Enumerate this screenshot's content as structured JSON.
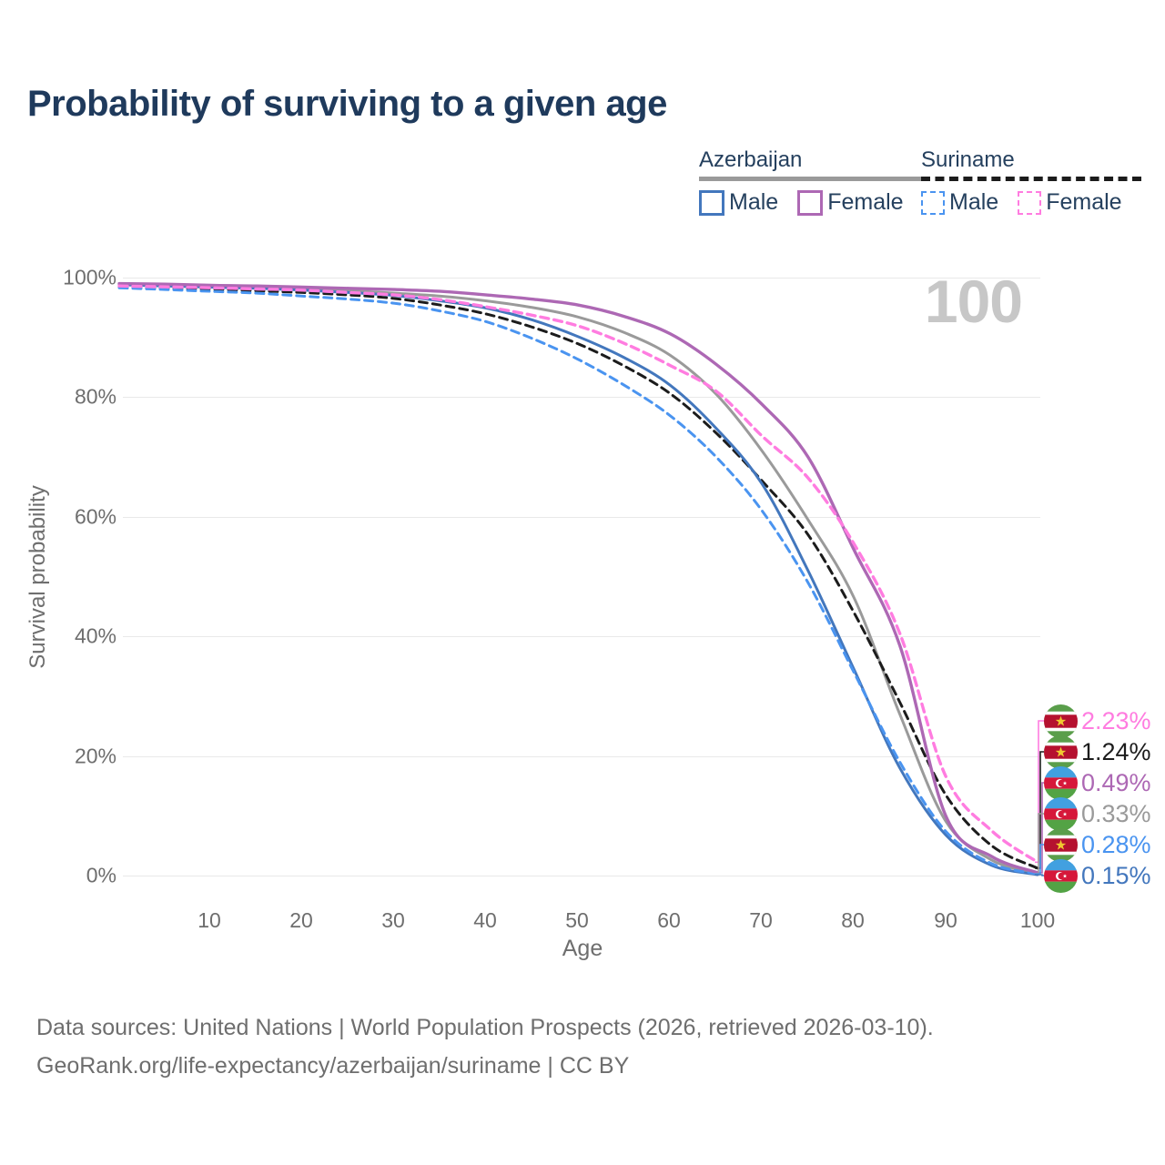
{
  "title": "Probability of surviving to a given age",
  "hover_age": "100",
  "legend": {
    "groups": [
      {
        "country": "Azerbaijan",
        "line_style": "solid",
        "underline_color": "#9a9a9a",
        "items": [
          {
            "label": "Male",
            "color": "#4377bd"
          },
          {
            "label": "Female",
            "color": "#ad68b4"
          }
        ]
      },
      {
        "country": "Suriname",
        "line_style": "dashed",
        "underline_color": "#1c1c1c",
        "items": [
          {
            "label": "Male",
            "color": "#4a94f0"
          },
          {
            "label": "Female",
            "color": "#ff7ce0"
          }
        ]
      }
    ]
  },
  "axes": {
    "y_title": "Survival probability",
    "x_title": "Age",
    "y_ticks": [
      "100%",
      "80%",
      "60%",
      "40%",
      "20%",
      "0%"
    ],
    "x_ticks": [
      "10",
      "20",
      "30",
      "40",
      "50",
      "60",
      "70",
      "80",
      "90",
      "100"
    ]
  },
  "annotations": [
    {
      "flag": "suriname",
      "series": "suriname_female",
      "value": "2.23%",
      "color": "#ff7ce0"
    },
    {
      "flag": "suriname",
      "series": "suriname_total",
      "value": "1.24%",
      "color": "#1c1c1c"
    },
    {
      "flag": "azerbaijan",
      "series": "azerbaijan_female",
      "value": "0.49%",
      "color": "#ad68b4"
    },
    {
      "flag": "azerbaijan",
      "series": "azerbaijan_total",
      "value": "0.33%",
      "color": "#9a9a9a"
    },
    {
      "flag": "suriname",
      "series": "suriname_male",
      "value": "0.28%",
      "color": "#4a94f0"
    },
    {
      "flag": "azerbaijan",
      "series": "azerbaijan_male",
      "value": "0.15%",
      "color": "#4377bd"
    }
  ],
  "footer": {
    "line1": "Data sources: United Nations | World Population Prospects (2026, retrieved 2026-03-10).",
    "line2": "GeoRank.org/life-expectancy/azerbaijan/suriname | CC BY"
  },
  "chart_data": {
    "type": "line",
    "title": "Probability of surviving to a given age",
    "xlabel": "Age",
    "ylabel": "Survival probability",
    "x_range": [
      0,
      100
    ],
    "y_range_percent": [
      0,
      100
    ],
    "grid": "horizontal",
    "legend_position": "top-right",
    "highlighted_age": 100,
    "x": [
      0,
      5,
      10,
      15,
      20,
      25,
      30,
      35,
      40,
      45,
      50,
      55,
      60,
      65,
      70,
      75,
      80,
      85,
      90,
      95,
      100
    ],
    "series": [
      {
        "id": "azerbaijan_total",
        "country": "Azerbaijan",
        "sex": "Total",
        "style": "solid",
        "color": "#9a9a9a",
        "values": [
          98.9,
          98.75,
          98.6,
          98.4,
          98.1,
          97.8,
          97.4,
          96.9,
          96.1,
          95.0,
          93.4,
          90.8,
          87.0,
          80.5,
          71.0,
          59.5,
          46.5,
          27.0,
          9.1,
          2.6,
          0.33
        ]
      },
      {
        "id": "suriname_total",
        "country": "Suriname",
        "sex": "Total",
        "style": "dashed",
        "color": "#1c1c1c",
        "values": [
          98.5,
          98.3,
          98.1,
          97.8,
          97.5,
          97.1,
          96.5,
          95.4,
          93.9,
          91.7,
          88.9,
          85.2,
          80.6,
          74.0,
          66.0,
          57.0,
          44.0,
          29.0,
          13.5,
          5.0,
          1.24
        ]
      },
      {
        "id": "azerbaijan_male",
        "country": "Azerbaijan",
        "sex": "Male",
        "style": "solid",
        "color": "#4377bd",
        "values": [
          98.8,
          98.6,
          98.4,
          98.2,
          97.9,
          97.5,
          97.0,
          96.1,
          94.9,
          92.9,
          90.1,
          86.6,
          82.0,
          74.8,
          65.5,
          51.0,
          34.5,
          18.0,
          6.8,
          1.7,
          0.15
        ]
      },
      {
        "id": "suriname_male",
        "country": "Suriname",
        "sex": "Male",
        "style": "dashed",
        "color": "#4a94f0",
        "values": [
          98.3,
          98.0,
          97.7,
          97.4,
          96.9,
          96.4,
          95.7,
          94.4,
          92.6,
          89.8,
          86.3,
          82.0,
          76.9,
          70.0,
          61.0,
          49.0,
          34.0,
          19.0,
          7.4,
          2.0,
          0.28
        ]
      },
      {
        "id": "azerbaijan_female",
        "country": "Azerbaijan",
        "sex": "Female",
        "style": "solid",
        "color": "#ad68b4",
        "values": [
          99.0,
          98.9,
          98.7,
          98.6,
          98.4,
          98.2,
          98.0,
          97.7,
          97.1,
          96.4,
          95.4,
          93.5,
          90.6,
          85.5,
          78.8,
          70.0,
          54.5,
          38.5,
          10.0,
          3.2,
          0.49
        ]
      },
      {
        "id": "suriname_female",
        "country": "Suriname",
        "sex": "Female",
        "style": "dashed",
        "color": "#ff7ce0",
        "values": [
          98.6,
          98.45,
          98.3,
          98.1,
          97.9,
          97.5,
          97.1,
          96.3,
          95.1,
          93.7,
          91.9,
          89.0,
          85.3,
          81.0,
          73.5,
          66.5,
          55.5,
          40.5,
          16.6,
          7.5,
          2.23
        ]
      }
    ]
  }
}
